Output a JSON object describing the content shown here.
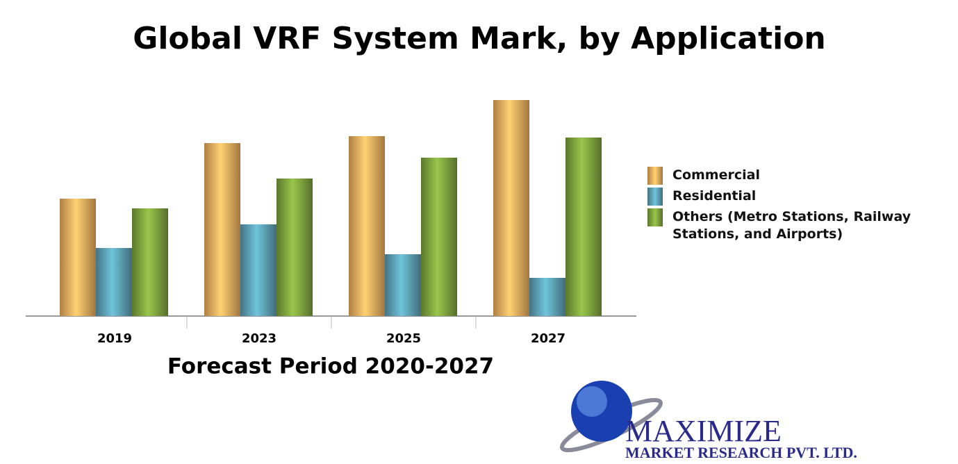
{
  "chart_data": {
    "type": "bar",
    "title": "Global VRF System Mark, by Application",
    "x_label": "Forecast Period 2020-2027",
    "categories": [
      "2019",
      "2023",
      "2025",
      "2027"
    ],
    "series": [
      {
        "name": "Commercial",
        "color": "#e8a85a",
        "values": [
          169,
          249,
          259,
          311
        ]
      },
      {
        "name": "Residential",
        "color": "#5a9cb0",
        "values": [
          98,
          132,
          89,
          55
        ]
      },
      {
        "name": "Others (Metro Stations, Railway Stations, and Airports)",
        "color": "#7a9e3c",
        "values": [
          155,
          198,
          228,
          257
        ]
      }
    ],
    "ylim": [
      0,
      320
    ],
    "legend": "right"
  },
  "logo": {
    "name": "MAXIMIZE",
    "tagline": "MARKET RESEARCH PVT. LTD."
  }
}
